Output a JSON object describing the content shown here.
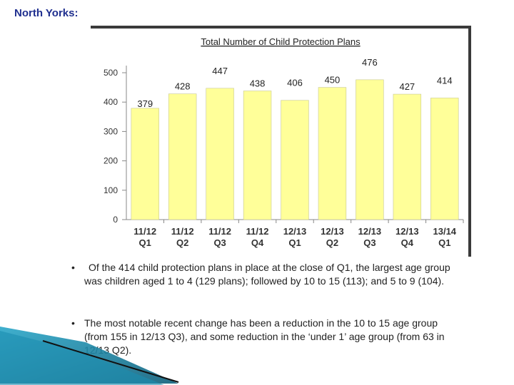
{
  "page": {
    "heading": "North Yorks:"
  },
  "bullets": [
    {
      "marker": "•",
      "text": "Of the 414 child protection plans in place at the close of Q1, the largest age group was children aged 1 to 4 (129 plans); followed by 10 to 15 (113); and 5 to 9 (104)."
    },
    {
      "marker": "•",
      "text": "The most notable recent change has been a reduction in the 10 to 15 age group (from 155 in 12/13 Q3), and some reduction in the ‘under 1’ age group (from 63 in 12/13 Q2)."
    }
  ],
  "chart_data": {
    "type": "bar",
    "title": "Total Number of Child Protection Plans",
    "categories": [
      [
        "11/12",
        "Q1"
      ],
      [
        "11/12",
        "Q2"
      ],
      [
        "11/12",
        "Q3"
      ],
      [
        "11/12",
        "Q4"
      ],
      [
        "12/13",
        "Q1"
      ],
      [
        "12/13",
        "Q2"
      ],
      [
        "12/13",
        "Q3"
      ],
      [
        "12/13",
        "Q4"
      ],
      [
        "13/14",
        "Q1"
      ]
    ],
    "values": [
      379,
      428,
      447,
      438,
      406,
      450,
      476,
      427,
      414
    ],
    "data_labels": [
      "379",
      "428",
      "447",
      "438",
      "406",
      "450",
      "476",
      "427",
      "414"
    ],
    "yticks": [
      "0",
      "100",
      "200",
      "300",
      "400",
      "500"
    ],
    "ylim": [
      0,
      500
    ],
    "grid": false,
    "colors": {
      "bar": "#ffff99",
      "bar_edge": "#c8c890",
      "axis": "#888888",
      "title": "#222222"
    }
  }
}
